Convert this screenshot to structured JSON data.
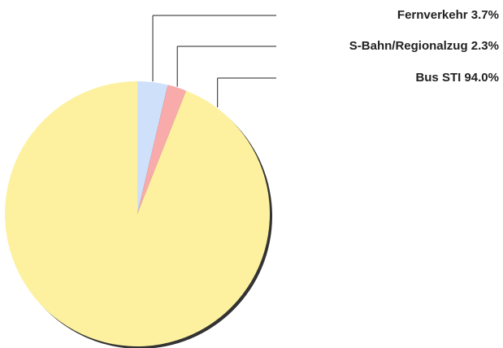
{
  "chart_data": {
    "type": "pie",
    "categories": [
      "Fernverkehr",
      "S-Bahn/Regionalzug",
      "Bus STI"
    ],
    "values": [
      3.7,
      2.3,
      94.0
    ],
    "value_labels": [
      "3.7%",
      "2.3%",
      "94.0%"
    ],
    "colors": [
      "#cfe0fb",
      "#f9aaaa",
      "#fdf1a0"
    ]
  }
}
